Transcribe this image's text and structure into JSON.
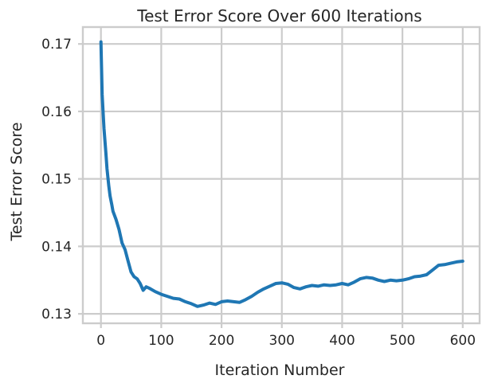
{
  "chart_data": {
    "type": "line",
    "title": "Test Error Score Over 600 Iterations",
    "xlabel": "Iteration Number",
    "ylabel": "Test Error Score",
    "xlim": [
      -30,
      628
    ],
    "ylim": [
      0.1286,
      0.1725
    ],
    "x_ticks": [
      0,
      100,
      200,
      300,
      400,
      500,
      600
    ],
    "y_ticks": [
      0.13,
      0.14,
      0.15,
      0.16,
      0.17
    ],
    "x_tick_labels": [
      "0",
      "100",
      "200",
      "300",
      "400",
      "500",
      "600"
    ],
    "y_tick_labels": [
      "0.13",
      "0.14",
      "0.15",
      "0.16",
      "0.17"
    ],
    "grid": true,
    "legend": "none",
    "series": [
      {
        "color": "#1f77b4",
        "x": [
          0,
          2,
          5,
          8,
          10,
          13,
          15,
          18,
          20,
          25,
          30,
          35,
          40,
          45,
          50,
          55,
          60,
          65,
          70,
          75,
          80,
          90,
          100,
          110,
          120,
          130,
          140,
          150,
          160,
          170,
          180,
          190,
          200,
          210,
          220,
          230,
          240,
          250,
          260,
          270,
          280,
          290,
          300,
          310,
          320,
          330,
          340,
          350,
          360,
          370,
          380,
          390,
          400,
          410,
          420,
          430,
          440,
          450,
          460,
          470,
          480,
          490,
          500,
          510,
          520,
          530,
          540,
          550,
          560,
          570,
          580,
          590,
          600
        ],
        "values": [
          0.1703,
          0.1625,
          0.1575,
          0.154,
          0.1515,
          0.149,
          0.1475,
          0.1462,
          0.1452,
          0.144,
          0.1425,
          0.1405,
          0.1395,
          0.1378,
          0.1362,
          0.1355,
          0.1352,
          0.1345,
          0.1335,
          0.134,
          0.1338,
          0.1333,
          0.1329,
          0.1326,
          0.1323,
          0.1322,
          0.1318,
          0.1315,
          0.1311,
          0.1313,
          0.1316,
          0.1314,
          0.1318,
          0.1319,
          0.1318,
          0.1317,
          0.1321,
          0.1326,
          0.1332,
          0.1337,
          0.1341,
          0.1345,
          0.1346,
          0.1344,
          0.1339,
          0.1337,
          0.134,
          0.1342,
          0.1341,
          0.1343,
          0.1342,
          0.1343,
          0.1345,
          0.1343,
          0.1347,
          0.1352,
          0.1354,
          0.1353,
          0.135,
          0.1348,
          0.135,
          0.1349,
          0.135,
          0.1352,
          0.1355,
          0.1356,
          0.1358,
          0.1365,
          0.1372,
          0.1373,
          0.1375,
          0.1377,
          0.1378
        ]
      }
    ]
  }
}
